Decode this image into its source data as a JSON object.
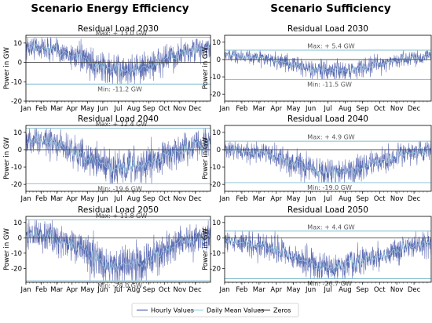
{
  "column_titles": [
    "Scenario Energy Efficiency",
    "Scenario Sufficiency"
  ],
  "legend": {
    "entries": [
      {
        "label": "Hourly Values",
        "color": "#4a5aa8"
      },
      {
        "label": "Daily Mean Values",
        "color": "#8fd3e0"
      },
      {
        "label": "Zeros",
        "color": "#444444"
      }
    ]
  },
  "chart_data": [
    {
      "type": "line",
      "title": "Residual Load 2030",
      "scenario": "Scenario Energy Efficiency",
      "ylabel": "Power in GW",
      "ylim": [
        -20,
        14
      ],
      "yticks": [
        "10",
        "0",
        "-10",
        "-20"
      ],
      "x_ticks": [
        "Jan",
        "Feb",
        "Mar",
        "Apr",
        "May",
        "Jun",
        "Jul",
        "Aug",
        "Sep",
        "Oct",
        "Nov",
        "Dec"
      ],
      "max_value": 13.0,
      "min_value": -11.2,
      "max_label": "Max: + 13.0 GW",
      "min_label": "Min: -11.2 GW",
      "series": [
        {
          "name": "Hourly Values"
        },
        {
          "name": "Daily Mean Values"
        },
        {
          "name": "Zeros"
        }
      ]
    },
    {
      "type": "line",
      "title": "Residual Load 2030",
      "scenario": "Scenario Sufficiency",
      "ylabel": "Power in GW",
      "ylim": [
        -24,
        14
      ],
      "yticks": [
        "10",
        "0",
        "-10",
        "-20"
      ],
      "x_ticks": [
        "Jan",
        "Feb",
        "Mar",
        "Apr",
        "May",
        "Jun",
        "Jul",
        "Aug",
        "Sep",
        "Oct",
        "Nov",
        "Dec"
      ],
      "max_value": 5.4,
      "min_value": -11.5,
      "max_label": "Max: + 5.4 GW",
      "min_label": "Min: -11.5 GW",
      "series": [
        {
          "name": "Hourly Values"
        },
        {
          "name": "Daily Mean Values"
        },
        {
          "name": "Zeros"
        }
      ]
    },
    {
      "type": "line",
      "title": "Residual Load 2040",
      "scenario": "Scenario Energy Efficiency",
      "ylabel": "Power in GW",
      "ylim": [
        -24,
        14
      ],
      "yticks": [
        "10",
        "0",
        "-10",
        "-20"
      ],
      "x_ticks": [
        "Jan",
        "Feb",
        "Mar",
        "Apr",
        "May",
        "Jun",
        "Jul",
        "Aug",
        "Sep",
        "Oct",
        "Nov",
        "Dec"
      ],
      "max_value": 12.4,
      "min_value": -19.6,
      "max_label": "Max: + 12.4 GW",
      "min_label": "Min: -19.6 GW",
      "series": [
        {
          "name": "Hourly Values"
        },
        {
          "name": "Daily Mean Values"
        },
        {
          "name": "Zeros"
        }
      ]
    },
    {
      "type": "line",
      "title": "Residual Load 2040",
      "scenario": "Scenario Sufficiency",
      "ylabel": "Power in GW",
      "ylim": [
        -24,
        14
      ],
      "yticks": [
        "10",
        "0",
        "-10",
        "-20"
      ],
      "x_ticks": [
        "Jan",
        "Feb",
        "Mar",
        "Apr",
        "May",
        "Jun",
        "Jul",
        "Aug",
        "Sep",
        "Oct",
        "Nov",
        "Dec"
      ],
      "max_value": 4.9,
      "min_value": -19.0,
      "max_label": "Max: + 4.9 GW",
      "min_label": "Min: -19.0 GW",
      "series": [
        {
          "name": "Hourly Values"
        },
        {
          "name": "Daily Mean Values"
        },
        {
          "name": "Zeros"
        }
      ]
    },
    {
      "type": "line",
      "title": "Residual Load 2050",
      "scenario": "Scenario Energy Efficiency",
      "ylabel": "Power in GW",
      "ylim": [
        -29,
        14
      ],
      "yticks": [
        "10",
        "0",
        "-10",
        "-20"
      ],
      "x_ticks": [
        "Jan",
        "Feb",
        "Mar",
        "Apr",
        "May",
        "Jun",
        "Jul",
        "Aug",
        "Sep",
        "Oct",
        "Nov",
        "Dec"
      ],
      "max_value": 11.8,
      "min_value": -28.0,
      "max_label": "Max: + 11.8 GW",
      "min_label": "Min: -28.0 GW",
      "series": [
        {
          "name": "Hourly Values"
        },
        {
          "name": "Daily Mean Values"
        },
        {
          "name": "Zeros"
        }
      ]
    },
    {
      "type": "line",
      "title": "Residual Load 2050",
      "scenario": "Scenario Sufficiency",
      "ylabel": "Power in GW",
      "ylim": [
        -29,
        14
      ],
      "yticks": [
        "10",
        "0",
        "-10",
        "-20"
      ],
      "x_ticks": [
        "Jan",
        "Feb",
        "Mar",
        "Apr",
        "May",
        "Jun",
        "Jul",
        "Aug",
        "Sep",
        "Oct",
        "Nov",
        "Dec"
      ],
      "max_value": 4.4,
      "min_value": -26.7,
      "max_label": "Max: + 4.4 GW",
      "min_label": "Min: -26.7 GW",
      "series": [
        {
          "name": "Hourly Values"
        },
        {
          "name": "Daily Mean Values"
        },
        {
          "name": "Zeros"
        }
      ]
    }
  ]
}
